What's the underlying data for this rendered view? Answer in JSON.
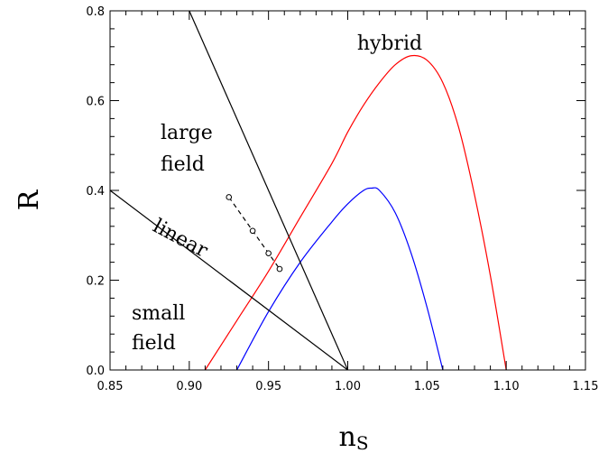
{
  "chart_data": {
    "type": "line",
    "title": "",
    "xlabel": "n",
    "xlabel_sub": "S",
    "ylabel": "R",
    "xlim": [
      0.85,
      1.15
    ],
    "ylim": [
      0.0,
      0.8
    ],
    "xticks": [
      "0.85",
      "0.90",
      "0.95",
      "1.00",
      "1.05",
      "1.10",
      "1.15"
    ],
    "yticks": [
      "0.0",
      "0.2",
      "0.4",
      "0.6",
      "0.8"
    ],
    "grid": false,
    "annotations": {
      "hybrid": "hybrid",
      "large_field_1": "large",
      "large_field_2": "field",
      "linear": "linear",
      "small_field_1": "small",
      "small_field_2": "field"
    },
    "series": [
      {
        "color": "#ff0000",
        "style": "solid",
        "x": [
          0.91,
          0.93,
          0.95,
          0.97,
          0.99,
          1.0,
          1.01,
          1.02,
          1.03,
          1.04,
          1.05,
          1.06,
          1.07,
          1.08,
          1.09,
          1.1
        ],
        "y": [
          0.0,
          0.11,
          0.22,
          0.34,
          0.46,
          0.53,
          0.59,
          0.64,
          0.68,
          0.7,
          0.69,
          0.64,
          0.54,
          0.39,
          0.21,
          0.0
        ]
      },
      {
        "color": "#0000ff",
        "style": "solid",
        "x": [
          0.93,
          0.95,
          0.97,
          0.99,
          1.0,
          1.01,
          1.015,
          1.02,
          1.03,
          1.04,
          1.05,
          1.06
        ],
        "y": [
          0.0,
          0.13,
          0.24,
          0.33,
          0.37,
          0.4,
          0.405,
          0.4,
          0.35,
          0.26,
          0.14,
          0.0
        ]
      },
      {
        "color": "#000000",
        "style": "solid",
        "x": [
          0.9,
          1.0
        ],
        "y": [
          0.8,
          0.0
        ]
      },
      {
        "color": "#000000",
        "style": "solid",
        "x": [
          0.85,
          1.0
        ],
        "y": [
          0.4,
          0.0
        ]
      },
      {
        "color": "#000000",
        "style": "dashed",
        "markers": true,
        "x": [
          0.925,
          0.94,
          0.95,
          0.957
        ],
        "y": [
          0.385,
          0.31,
          0.26,
          0.225
        ]
      }
    ]
  }
}
